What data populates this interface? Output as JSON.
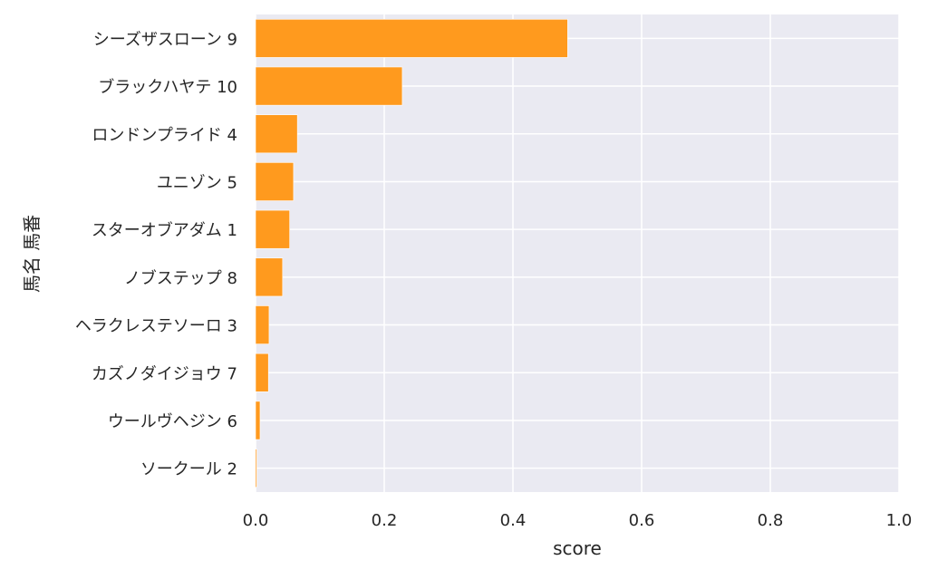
{
  "chart_data": {
    "type": "bar",
    "orientation": "horizontal",
    "categories": [
      "シーズザスローン 9",
      "ブラックハヤテ 10",
      "ロンドンプライド 4",
      "ユニゾン 5",
      "スターオブアダム 1",
      "ノブステップ 8",
      "ヘラクレステソーロ 3",
      "カズノダイジョウ 7",
      "ウールヴヘジン 6",
      "ソークール 2"
    ],
    "values": [
      0.485,
      0.228,
      0.065,
      0.059,
      0.053,
      0.042,
      0.021,
      0.02,
      0.007,
      0.002
    ],
    "xlabel": "score",
    "ylabel": "馬名 馬番",
    "xlim": [
      0.0,
      1.0
    ],
    "xticks": [
      "0.0",
      "0.2",
      "0.4",
      "0.6",
      "0.8",
      "1.0"
    ],
    "grid": true,
    "bar_color": "#ff9a1e",
    "background_color": "#eaeaf2"
  }
}
